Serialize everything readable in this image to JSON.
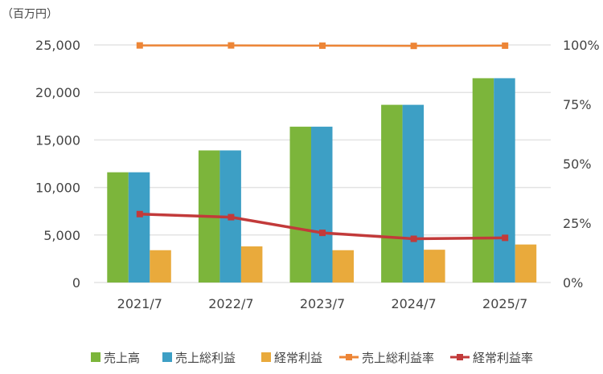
{
  "chart_data": {
    "type": "bar",
    "unit_label": "（百万円）",
    "categories": [
      "2021/7",
      "2022/7",
      "2023/7",
      "2024/7",
      "2025/7"
    ],
    "left_axis": {
      "ylim": [
        0,
        25000
      ],
      "ticks": [
        "0",
        "5,000",
        "10,000",
        "15,000",
        "20,000",
        "25,000"
      ],
      "tick_values": [
        0,
        5000,
        10000,
        15000,
        20000,
        25000
      ]
    },
    "right_axis": {
      "ylim": [
        0,
        100
      ],
      "ticks": [
        "0%",
        "25%",
        "50%",
        "75%",
        "100%"
      ],
      "tick_values": [
        0,
        25,
        50,
        75,
        100
      ]
    },
    "grid": true,
    "legend_position": "bottom",
    "series": [
      {
        "name": "売上高",
        "kind": "bar",
        "axis": "left",
        "color": "#7cb53b",
        "values": [
          11600,
          13900,
          16400,
          18700,
          21500
        ]
      },
      {
        "name": "売上総利益",
        "kind": "bar",
        "axis": "left",
        "color": "#3d9fc5",
        "values": [
          11600,
          13900,
          16400,
          18700,
          21500
        ]
      },
      {
        "name": "経常利益",
        "kind": "bar",
        "axis": "left",
        "color": "#e9aa3c",
        "values": [
          3400,
          3800,
          3400,
          3450,
          4000
        ]
      },
      {
        "name": "売上総利益率",
        "kind": "line",
        "axis": "right",
        "color": "#ed8536",
        "values": [
          99.8,
          99.8,
          99.7,
          99.6,
          99.7
        ]
      },
      {
        "name": "経常利益率",
        "kind": "line",
        "axis": "right",
        "color": "#c23a3a",
        "values": [
          28.8,
          27.5,
          20.9,
          18.4,
          18.8
        ]
      }
    ]
  }
}
